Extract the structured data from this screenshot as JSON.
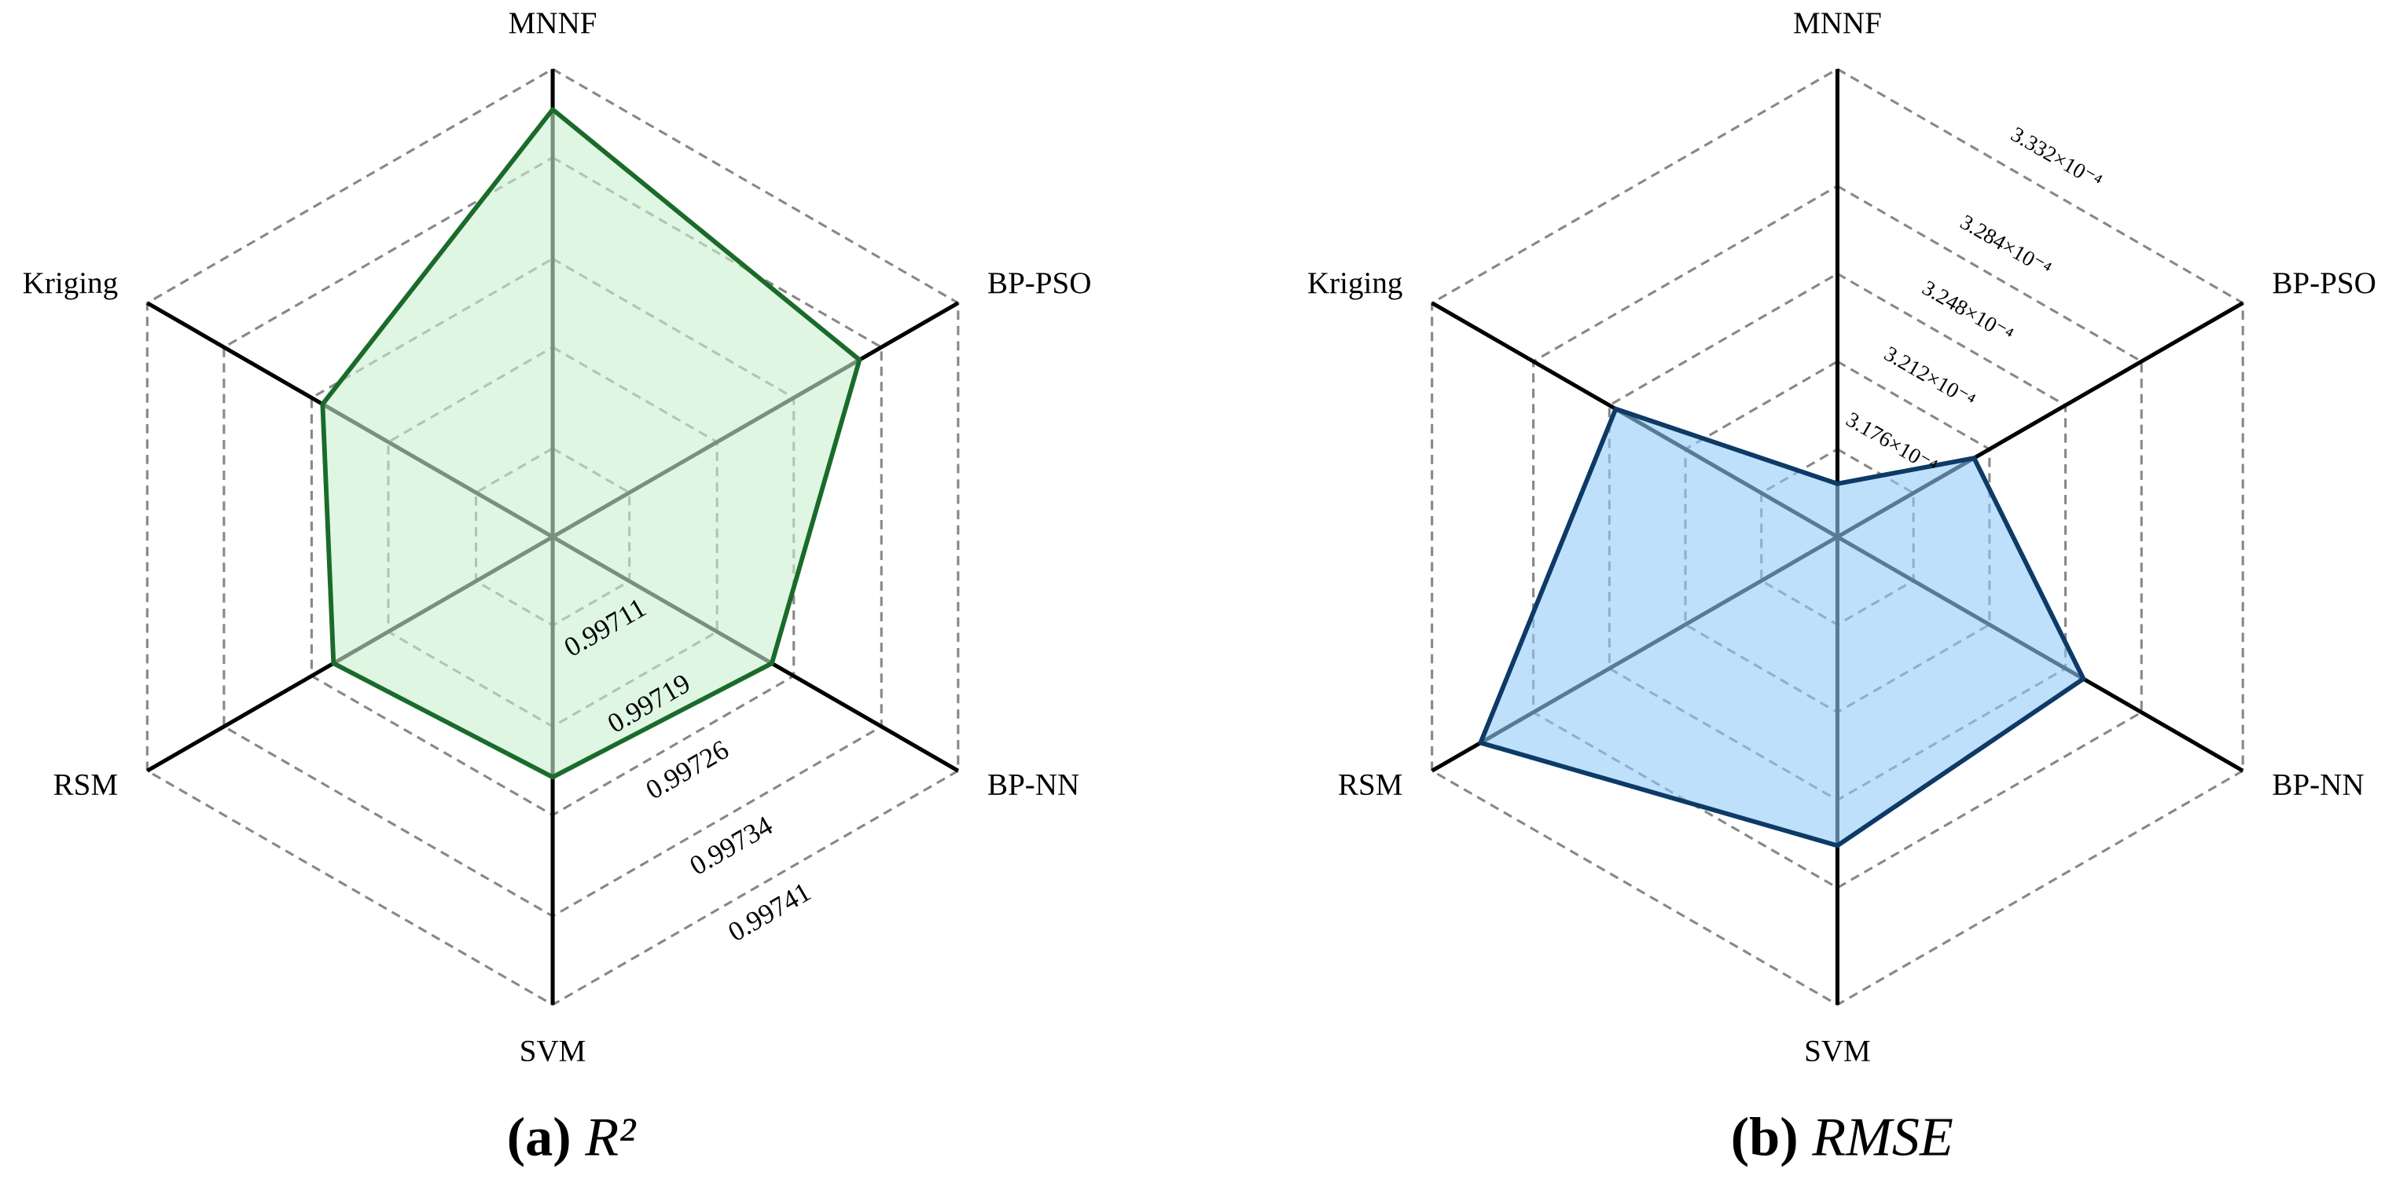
{
  "chart_data": [
    {
      "type": "radar",
      "panel": "(a)",
      "title": "R²",
      "categories": [
        "MNNF",
        "BP-PSO",
        "BP-NN",
        "SVM",
        "RSM",
        "Kriging"
      ],
      "series": [
        {
          "color": "#1a6b2a",
          "fill": "#c9f0d0",
          "values": [
            0.997378,
            0.99732,
            0.99724,
            0.99723,
            0.99724,
            0.99725
          ]
        }
      ],
      "rlim": [
        0.99704,
        0.99741
      ],
      "rticks": [
        0.99711,
        0.99719,
        0.99726,
        0.99734,
        0.99741
      ],
      "tick_direction": 150
    },
    {
      "type": "radar",
      "panel": "(b)",
      "title": "RMSE",
      "categories": [
        "MNNF",
        "BP-PSO",
        "BP-NN",
        "SVM",
        "RSM",
        "Kriging"
      ],
      "series": [
        {
          "color": "#0d3a66",
          "fill": "#93cbf6",
          "values": [
            0.00031618,
            0.00032047,
            0.00032565,
            0.00032667,
            0.0003309,
            0.0003245
          ]
        }
      ],
      "rlim": [
        0.000314,
        0.0003332
      ],
      "rticks": [
        {
          "value": 0.0003176,
          "label": "3.176×10⁻⁴"
        },
        {
          "value": 0.0003212,
          "label": "3.212×10⁻⁴"
        },
        {
          "value": 0.0003248,
          "label": "3.248×10⁻⁴"
        },
        {
          "value": 0.0003284,
          "label": "3.284×10⁻⁴"
        },
        {
          "value": 0.0003332,
          "label": "3.332×10⁻⁴"
        }
      ],
      "tick_direction": 30
    }
  ]
}
